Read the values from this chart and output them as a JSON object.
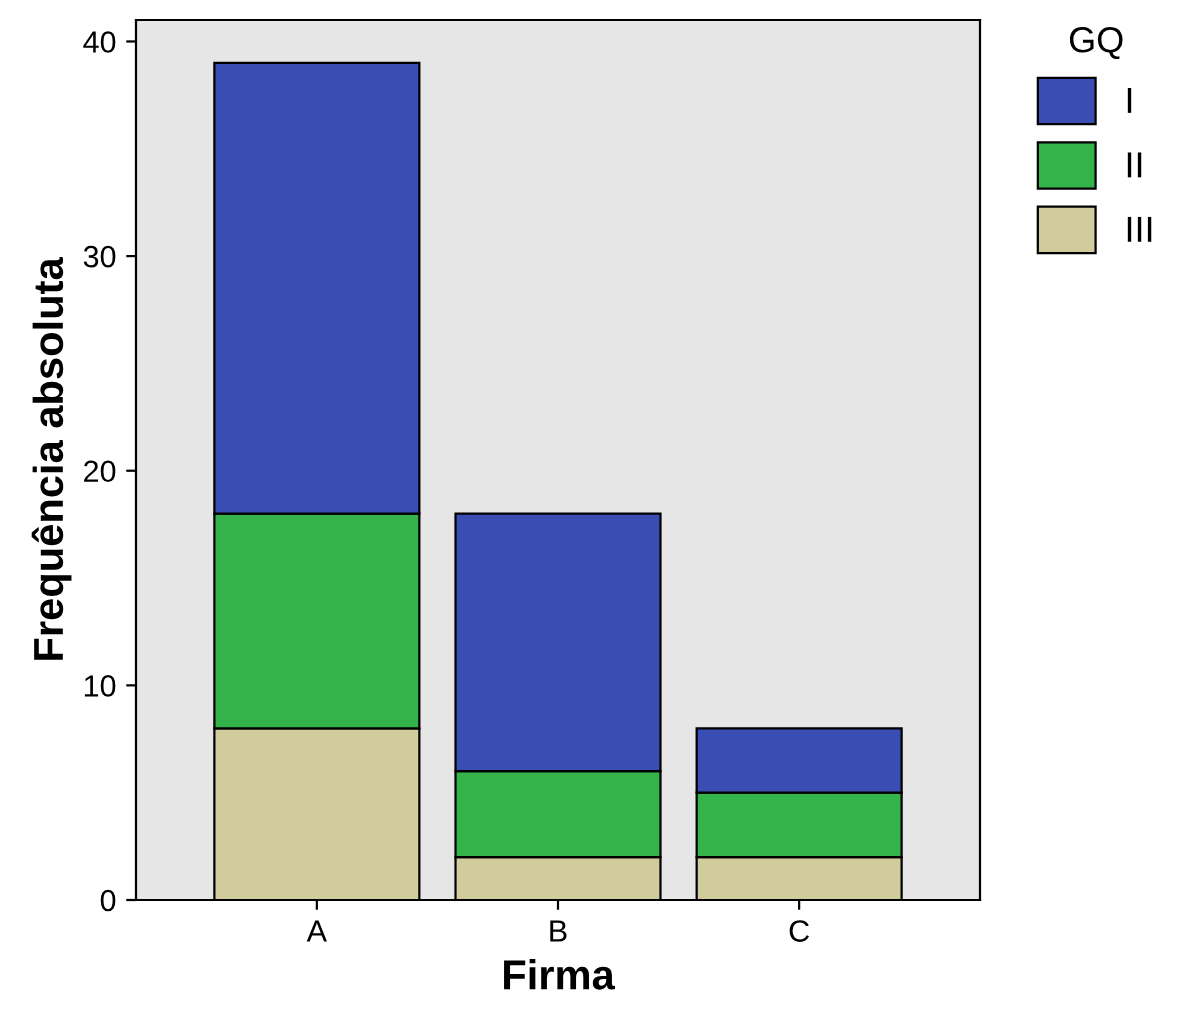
{
  "chart_data": {
    "type": "bar",
    "stacked": true,
    "xlabel": "Firma",
    "ylabel": "Frequência absoluta",
    "legend_title": "GQ",
    "categories": [
      "A",
      "B",
      "C"
    ],
    "series": [
      {
        "name": "III",
        "color": "#d0cc9c",
        "values": [
          8,
          2,
          2
        ]
      },
      {
        "name": "II",
        "color": "#33b34a",
        "values": [
          10,
          4,
          3
        ]
      },
      {
        "name": "I",
        "color": "#3a4db2",
        "values": [
          21,
          12,
          3
        ]
      }
    ],
    "ylim": [
      0,
      41
    ],
    "yticks": [
      0,
      10,
      20,
      30,
      40
    ],
    "grid": false,
    "legend": "top right"
  }
}
